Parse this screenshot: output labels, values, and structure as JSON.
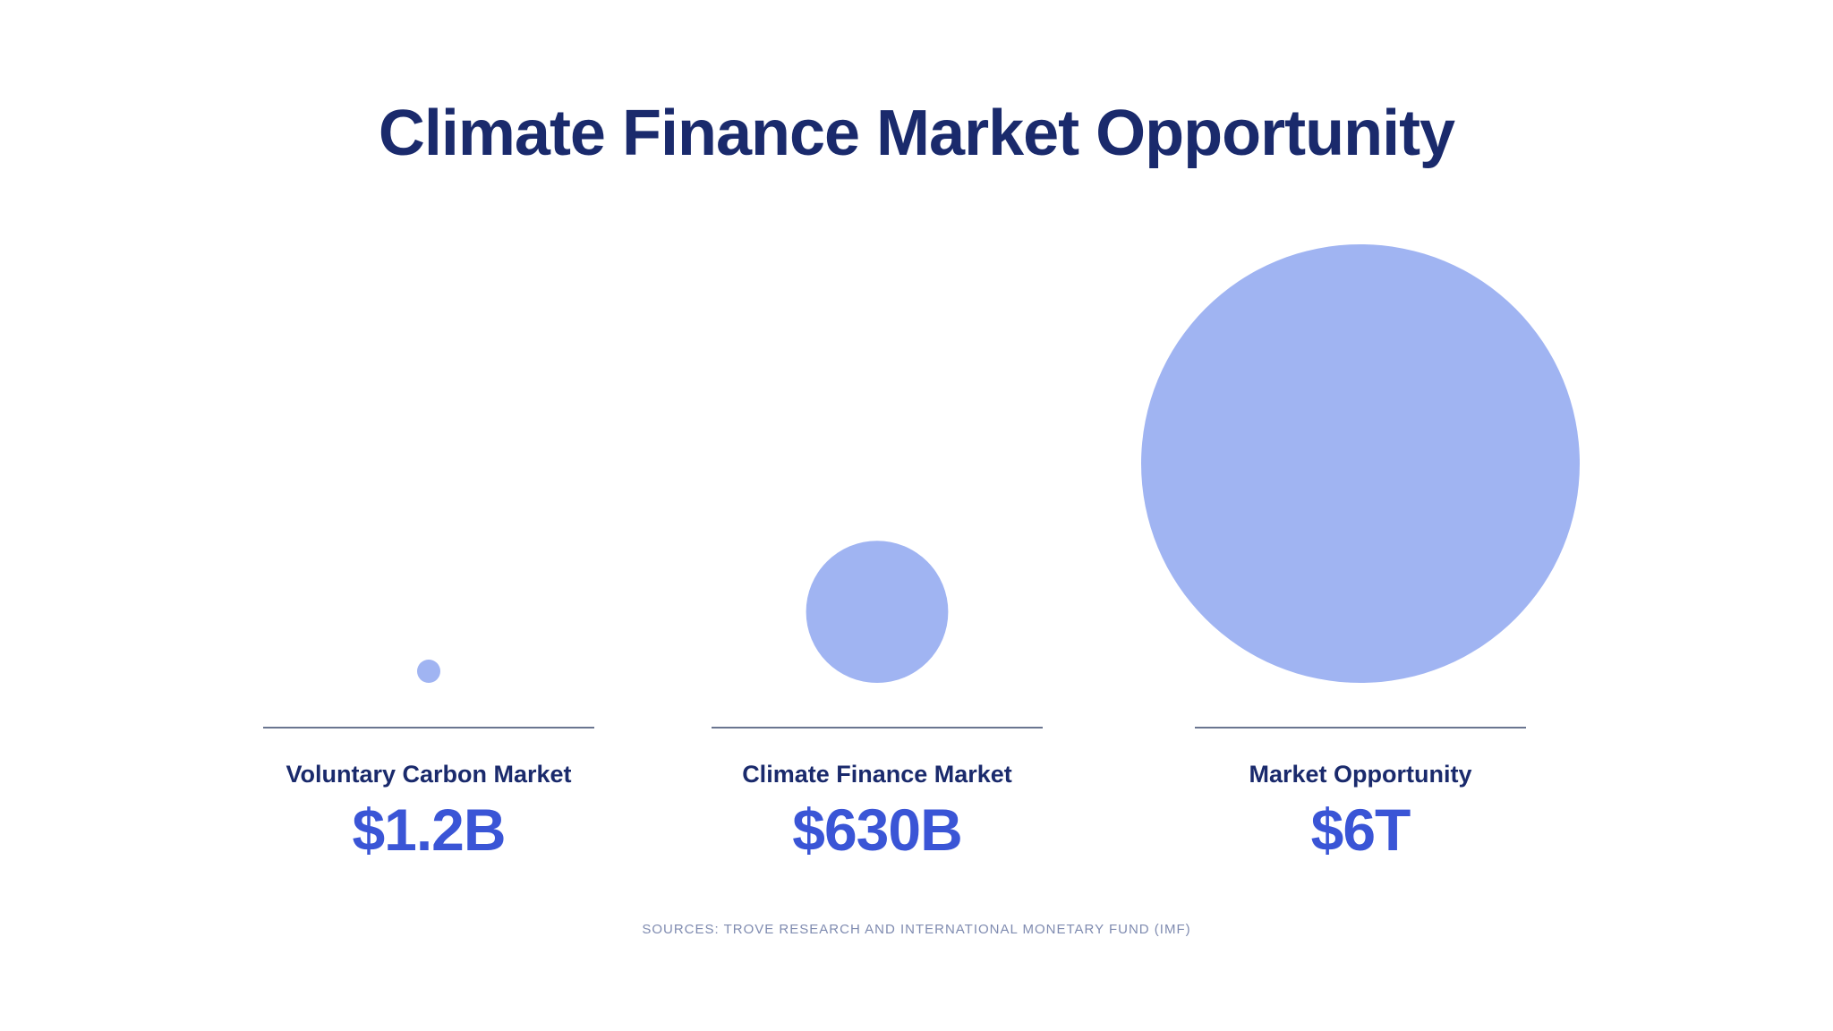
{
  "chart_data": {
    "type": "bubble",
    "title": "Climate Finance Market Opportunity",
    "categories": [
      "Voluntary Carbon Market",
      "Climate Finance Market",
      "Market Opportunity"
    ],
    "values": [
      1.2,
      630,
      6000
    ],
    "value_unit": "billion USD",
    "value_labels": [
      "$1.2B",
      "$630B",
      "$6T"
    ],
    "bubble_color": "#a0b4f2",
    "source": "SOURCES: TROVE RESEARCH AND INTERNATIONAL MONETARY FUND (IMF)"
  },
  "colors": {
    "title": "#1a2a6c",
    "value": "#3a55d6",
    "divider": "#6a7590",
    "source": "#7f8bb0"
  }
}
